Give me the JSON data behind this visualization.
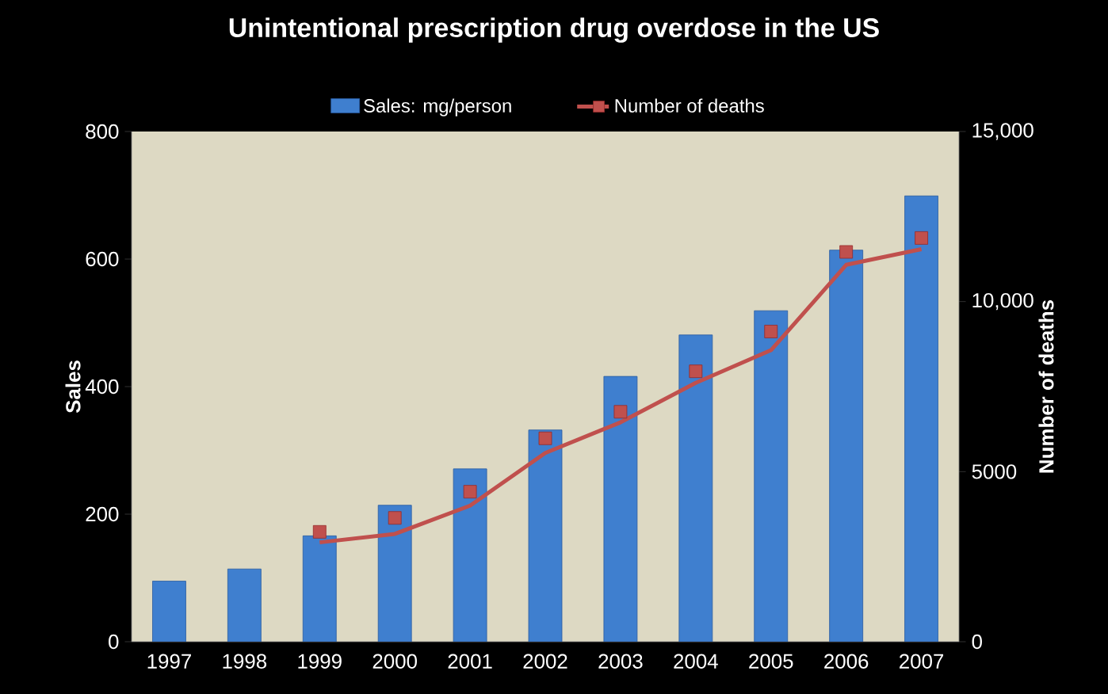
{
  "chart_data": {
    "type": "bar",
    "title": "Unintentional prescription drug overdose in the US",
    "categories": [
      "1997",
      "1998",
      "1999",
      "2000",
      "2001",
      "2002",
      "2003",
      "2004",
      "2005",
      "2006",
      "2007"
    ],
    "ylabel": "Sales",
    "y2label": "Number of deaths",
    "ylim": [
      0,
      800
    ],
    "yticks": [
      0,
      200,
      400,
      600,
      800
    ],
    "y2lim": [
      0,
      15000
    ],
    "y2ticks": [
      0,
      5000,
      {
        "value": 10000,
        "label": "10,000"
      },
      {
        "value": 15000,
        "label": "15,000"
      }
    ],
    "legend": "top",
    "series": [
      {
        "name": "Sales: mg/person",
        "color": "#3f7fcf",
        "values": [
          95,
          114,
          166,
          214,
          271,
          332,
          416,
          481,
          519,
          614,
          699
        ]
      },
      {
        "name": "Number of deaths",
        "type": "scatter",
        "axis": "y2",
        "marker": "square",
        "color": "#c0504d",
        "values": [
          null,
          null,
          3230,
          3640,
          4410,
          5980,
          6760,
          7950,
          9120,
          11460,
          11870
        ]
      },
      {
        "type": "line",
        "axis": "y2",
        "color": "#c0504d",
        "values": [
          null,
          null,
          2920,
          3170,
          4000,
          5550,
          6450,
          7610,
          8570,
          11080,
          11540
        ]
      }
    ]
  }
}
